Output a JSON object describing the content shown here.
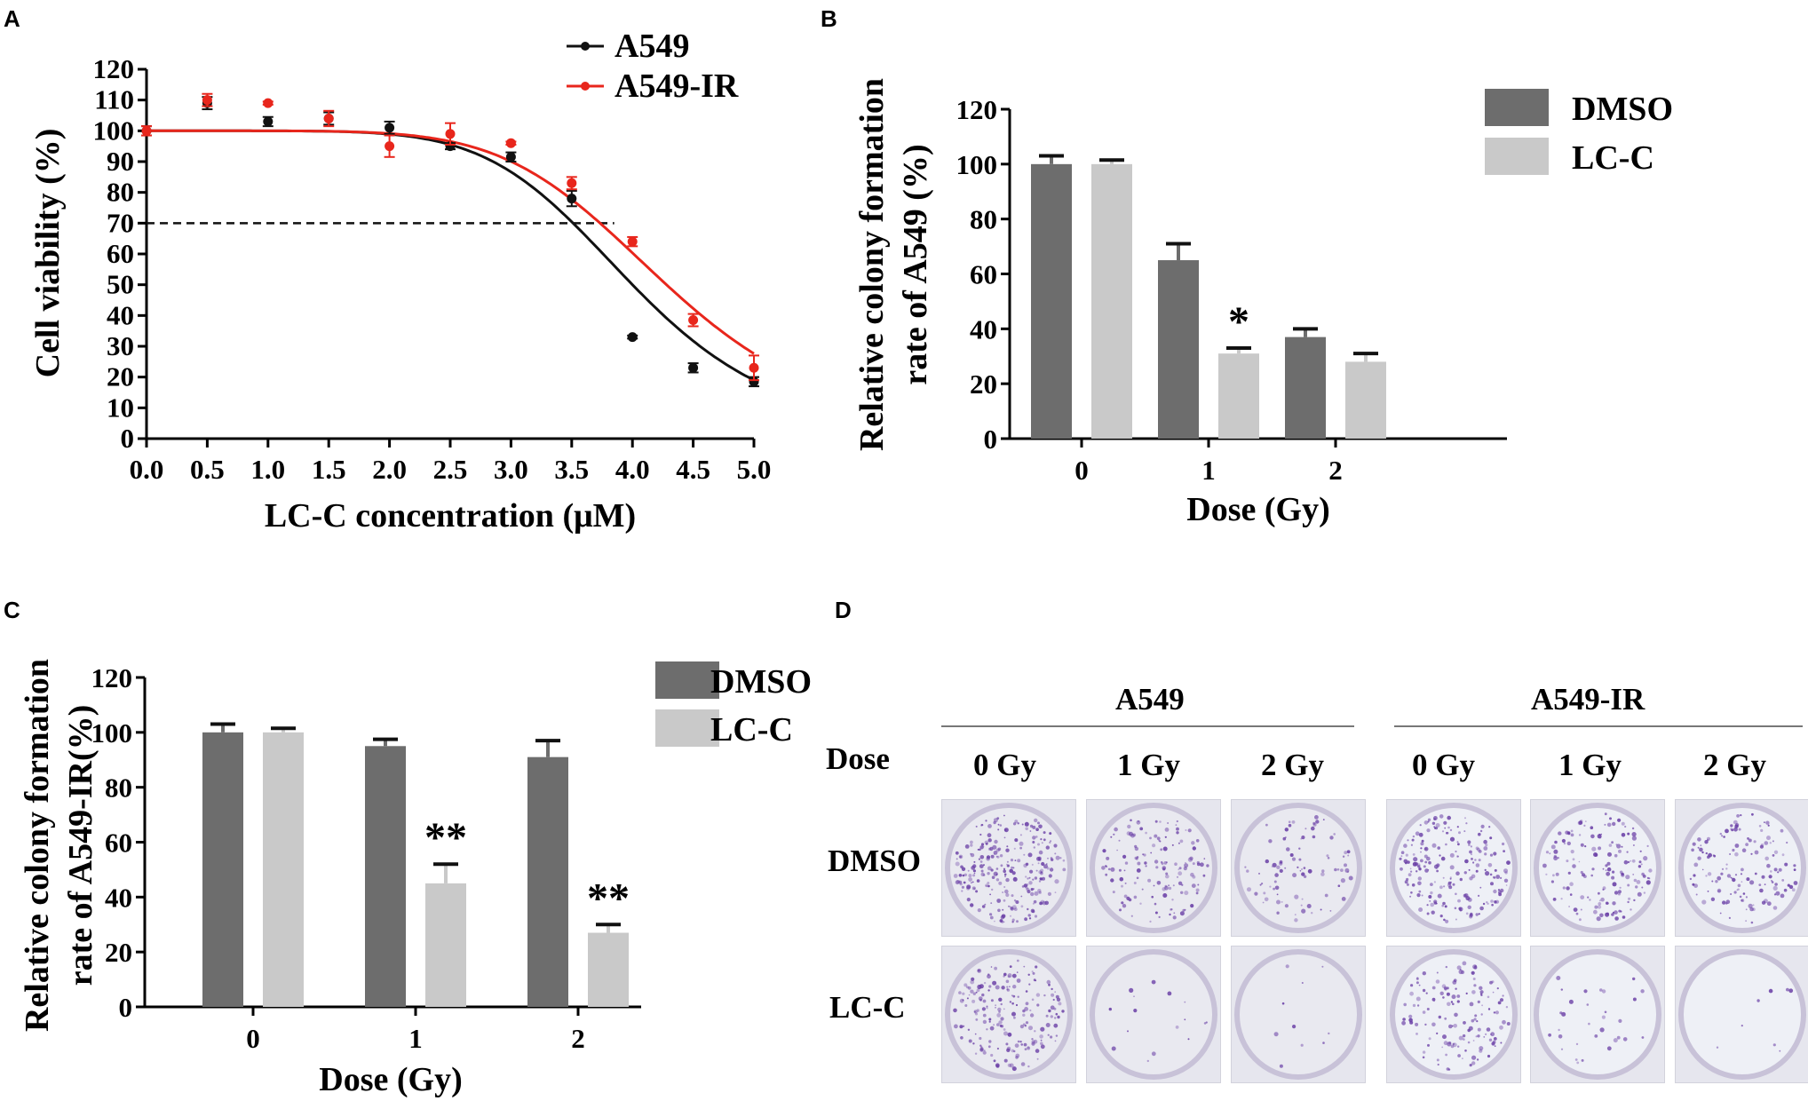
{
  "panels": {
    "a": "A",
    "b": "B",
    "c": "C",
    "d": "D"
  },
  "chart_data": [
    {
      "id": "A",
      "type": "scatter",
      "title": "",
      "xlabel": "LC-C concentration (μM)",
      "ylabel": "Cell viability (%)",
      "xlim": [
        0,
        5
      ],
      "ylim": [
        0,
        120
      ],
      "xticks": [
        "0.0",
        "0.5",
        "1.0",
        "1.5",
        "2.0",
        "2.5",
        "3.0",
        "3.5",
        "4.0",
        "4.5",
        "5.0"
      ],
      "yticks": [
        "0",
        "10",
        "20",
        "30",
        "40",
        "50",
        "60",
        "70",
        "80",
        "90",
        "100",
        "110",
        "120"
      ],
      "legend_position": "top-right",
      "reference_line": {
        "y": 70,
        "style": "dashed",
        "x_end": 3.85
      },
      "series": [
        {
          "name": "A549",
          "color": "#111111",
          "x": [
            0,
            0.5,
            1.0,
            1.5,
            2.0,
            2.5,
            3.0,
            3.5,
            4.0,
            4.5,
            5.0
          ],
          "y": [
            100,
            109,
            103,
            104,
            101,
            95,
            91.5,
            78,
            33,
            23,
            18.5
          ],
          "err": [
            1.5,
            2.0,
            1.5,
            2.0,
            2.0,
            1.0,
            1.5,
            2.5,
            0.5,
            1.5,
            1.5
          ],
          "fit": {
            "top": 100,
            "bottom": 0,
            "ec50": 4.0,
            "hill": 6.5
          }
        },
        {
          "name": "A549-IR",
          "color": "#e8261c",
          "x": [
            0,
            0.5,
            1.0,
            1.5,
            2.0,
            2.5,
            3.0,
            3.5,
            4.0,
            4.5,
            5.0
          ],
          "y": [
            100,
            110,
            109,
            104,
            95,
            99,
            96,
            83,
            64,
            38.5,
            23
          ],
          "err": [
            1.5,
            2.0,
            0.5,
            2.5,
            3.5,
            3.5,
            0.5,
            2.0,
            1.5,
            2.0,
            4.0
          ],
          "fit": {
            "top": 100,
            "bottom": 0,
            "ec50": 4.28,
            "hill": 6.2
          }
        }
      ]
    },
    {
      "id": "B",
      "type": "bar",
      "title": "",
      "xlabel": "Dose (Gy)",
      "ylabel_line1": "Relative colony formation",
      "ylabel_line2": "rate of A549 (%)",
      "categories": [
        "0",
        "1",
        "2"
      ],
      "ylim": [
        0,
        120
      ],
      "yticks": [
        "0",
        "20",
        "40",
        "60",
        "80",
        "100",
        "120"
      ],
      "legend_position": "top-right",
      "series": [
        {
          "name": "DMSO",
          "color": "#6d6d6d",
          "values": [
            100,
            65,
            37
          ],
          "err": [
            3,
            6,
            3
          ]
        },
        {
          "name": "LC-C",
          "color": "#c9c9c9",
          "values": [
            100,
            31,
            28
          ],
          "err": [
            1.5,
            2,
            3
          ]
        }
      ],
      "annotations": [
        {
          "category": "1",
          "series": "LC-C",
          "text": "*"
        }
      ]
    },
    {
      "id": "C",
      "type": "bar",
      "title": "",
      "xlabel": "Dose (Gy)",
      "ylabel_line1": "Relative colony formation",
      "ylabel_line2": "rate of A549-IR(%)",
      "categories": [
        "0",
        "1",
        "2"
      ],
      "ylim": [
        0,
        120
      ],
      "yticks": [
        "0",
        "20",
        "40",
        "60",
        "80",
        "100",
        "120"
      ],
      "legend_position": "top-right",
      "series": [
        {
          "name": "DMSO",
          "color": "#6d6d6d",
          "values": [
            100,
            95,
            91
          ],
          "err": [
            3,
            2.5,
            6
          ]
        },
        {
          "name": "LC-C",
          "color": "#c9c9c9",
          "values": [
            100,
            45,
            27
          ],
          "err": [
            1.5,
            7,
            3
          ]
        }
      ],
      "annotations": [
        {
          "category": "1",
          "series": "LC-C",
          "text": "**"
        },
        {
          "category": "2",
          "series": "LC-C",
          "text": "**"
        }
      ]
    }
  ],
  "panel_d": {
    "dose_label": "Dose",
    "groups": [
      {
        "name": "A549",
        "doses": [
          "0 Gy",
          "1 Gy",
          "2 Gy"
        ]
      },
      {
        "name": "A549-IR",
        "doses": [
          "0 Gy",
          "1 Gy",
          "2 Gy"
        ]
      }
    ],
    "rows": [
      "DMSO",
      "LC-C"
    ],
    "dish_density": [
      [
        [
          1.0,
          0.55,
          0.35,
          0.8,
          0.6,
          0.55
        ]
      ],
      [
        [
          0.75,
          0.06,
          0.04,
          0.55,
          0.12,
          0.03
        ]
      ]
    ],
    "stain_color": "#6a3fa6"
  }
}
